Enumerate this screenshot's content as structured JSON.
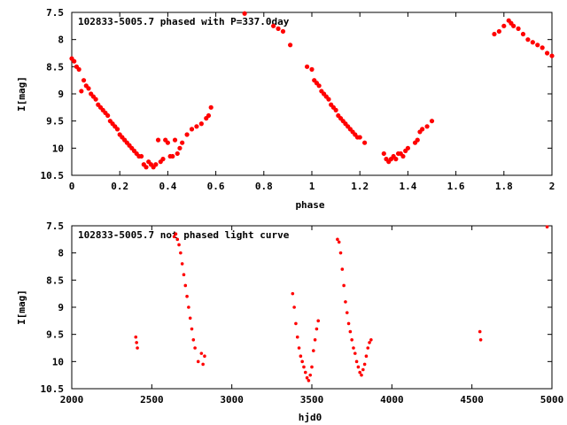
{
  "chart_data": [
    {
      "type": "scatter",
      "title": "102833-5005.7 phased with P=337.0day",
      "xlabel": "phase",
      "ylabel": "I[mag]",
      "xlim": [
        0,
        2
      ],
      "ylim": [
        10.5,
        7.5
      ],
      "y_inverted": true,
      "xticks": [
        "0",
        "0.2",
        "0.4",
        "0.6",
        "0.8",
        "1",
        "1.2",
        "1.4",
        "1.6",
        "1.8",
        "2"
      ],
      "yticks": [
        "7.5",
        "8",
        "8.5",
        "9",
        "9.5",
        "10",
        "10.5"
      ],
      "grid": false,
      "marker_color": "#ff0000",
      "series": [
        {
          "x": [
            0.0,
            0.01,
            0.02,
            0.03,
            0.04,
            0.05,
            0.06,
            0.07,
            0.08,
            0.09,
            0.1,
            0.11,
            0.12,
            0.13,
            0.14,
            0.15,
            0.16,
            0.17,
            0.18,
            0.19,
            0.2,
            0.21,
            0.22,
            0.23,
            0.24,
            0.25,
            0.26,
            0.27,
            0.28,
            0.29,
            0.3,
            0.31,
            0.32,
            0.33,
            0.34,
            0.35,
            0.36,
            0.37,
            0.38,
            0.39,
            0.4,
            0.41,
            0.42,
            0.43,
            0.44,
            0.45,
            0.46,
            0.48,
            0.5,
            0.52,
            0.54,
            0.56,
            0.57,
            0.58,
            0.72,
            0.84,
            0.86,
            0.88,
            0.91,
            0.98,
            1.0,
            1.01,
            1.02,
            1.03,
            1.04,
            1.05,
            1.06,
            1.07,
            1.08,
            1.09,
            1.1,
            1.11,
            1.12,
            1.13,
            1.14,
            1.15,
            1.16,
            1.17,
            1.18,
            1.19,
            1.2,
            1.22,
            1.3,
            1.31,
            1.32,
            1.33,
            1.34,
            1.35,
            1.36,
            1.37,
            1.38,
            1.39,
            1.4,
            1.43,
            1.44,
            1.45,
            1.46,
            1.48,
            1.5,
            1.76,
            1.78,
            1.8,
            1.82,
            1.83,
            1.84,
            1.86,
            1.88,
            1.9,
            1.92,
            1.94,
            1.96,
            1.98,
            2.0
          ],
          "y": [
            8.35,
            8.4,
            8.5,
            8.55,
            8.95,
            8.75,
            8.85,
            8.9,
            9.0,
            9.05,
            9.1,
            9.2,
            9.25,
            9.3,
            9.35,
            9.4,
            9.5,
            9.55,
            9.6,
            9.65,
            9.75,
            9.8,
            9.85,
            9.9,
            9.95,
            10.0,
            10.05,
            10.1,
            10.15,
            10.15,
            10.3,
            10.35,
            10.25,
            10.3,
            10.35,
            10.3,
            9.85,
            10.25,
            10.2,
            9.85,
            9.9,
            10.15,
            10.15,
            9.85,
            10.1,
            10.0,
            9.9,
            9.75,
            9.65,
            9.6,
            9.55,
            9.45,
            9.4,
            9.25,
            7.52,
            7.75,
            7.8,
            7.85,
            8.1,
            8.5,
            8.55,
            8.75,
            8.8,
            8.85,
            8.95,
            9.0,
            9.05,
            9.1,
            9.2,
            9.25,
            9.3,
            9.4,
            9.45,
            9.5,
            9.55,
            9.6,
            9.65,
            9.7,
            9.75,
            9.8,
            9.8,
            9.9,
            10.1,
            10.2,
            10.25,
            10.2,
            10.15,
            10.2,
            10.1,
            10.1,
            10.15,
            10.05,
            10.0,
            9.9,
            9.85,
            9.7,
            9.65,
            9.6,
            9.5,
            7.9,
            7.85,
            7.75,
            7.65,
            7.7,
            7.75,
            7.8,
            7.9,
            8.0,
            8.05,
            8.1,
            8.15,
            8.25,
            8.3
          ]
        }
      ]
    },
    {
      "type": "scatter",
      "title": "102833-5005.7 not phased light curve",
      "xlabel": "hjd0",
      "ylabel": "I[mag]",
      "xlim": [
        2000,
        5000
      ],
      "ylim": [
        10.5,
        7.5
      ],
      "y_inverted": true,
      "xticks": [
        "2000",
        "2500",
        "3000",
        "3500",
        "4000",
        "4500",
        "5000"
      ],
      "yticks": [
        "7.5",
        "8",
        "8.5",
        "9",
        "9.5",
        "10",
        "10.5"
      ],
      "grid": false,
      "marker_color": "#ff0000",
      "series": [
        {
          "x": [
            2400,
            2405,
            2410,
            2640,
            2650,
            2660,
            2670,
            2680,
            2690,
            2700,
            2710,
            2720,
            2730,
            2740,
            2750,
            2760,
            2770,
            2790,
            2810,
            2820,
            2830,
            3380,
            3390,
            3400,
            3410,
            3420,
            3430,
            3440,
            3450,
            3460,
            3470,
            3480,
            3490,
            3500,
            3510,
            3520,
            3530,
            3540,
            3660,
            3670,
            3680,
            3690,
            3700,
            3710,
            3720,
            3730,
            3740,
            3750,
            3760,
            3770,
            3780,
            3790,
            3800,
            3810,
            3820,
            3830,
            3840,
            3850,
            3860,
            3870,
            4550,
            4555,
            4970
          ],
          "y": [
            9.55,
            9.65,
            9.75,
            7.7,
            7.65,
            7.75,
            7.85,
            8.0,
            8.2,
            8.4,
            8.6,
            8.8,
            9.0,
            9.2,
            9.4,
            9.6,
            9.75,
            10.0,
            9.85,
            10.05,
            9.9,
            8.75,
            9.0,
            9.3,
            9.55,
            9.75,
            9.9,
            10.0,
            10.1,
            10.2,
            10.3,
            10.35,
            10.25,
            10.1,
            9.8,
            9.6,
            9.4,
            9.25,
            7.75,
            7.8,
            8.0,
            8.3,
            8.6,
            8.9,
            9.1,
            9.3,
            9.45,
            9.6,
            9.75,
            9.85,
            10.0,
            10.1,
            10.2,
            10.25,
            10.15,
            10.05,
            9.9,
            9.75,
            9.65,
            9.6,
            9.45,
            9.6,
            7.52
          ]
        }
      ]
    }
  ]
}
